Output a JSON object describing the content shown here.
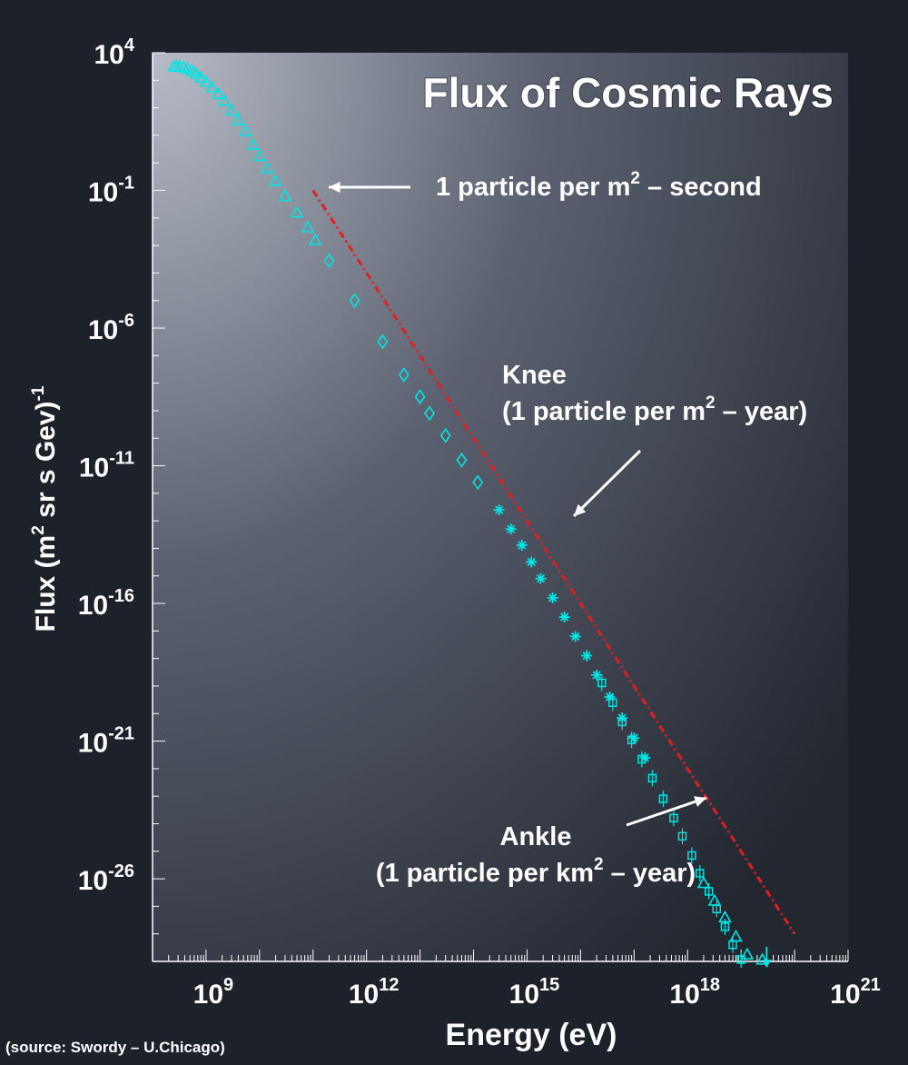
{
  "source_note": "(source: Swordy – U.Chicago)",
  "colors": {
    "background": "#1d2129",
    "data": "#00e5e5",
    "fit": "#e0201e",
    "text": "#ffffff"
  },
  "chart_data": {
    "type": "scatter",
    "title": "Flux of Cosmic Rays",
    "xlabel": "Energy (eV)",
    "ylabel": {
      "text": "Flux (m",
      "sup1": "2",
      "mid": " sr s Gev)",
      "sup2": "-1"
    },
    "x_scale": "log",
    "y_scale": "log",
    "xlim": [
      100000000.0,
      1e+21
    ],
    "ylim": [
      1e-29,
      10000.0
    ],
    "x_ticks": [
      {
        "base": "10",
        "exp": "9",
        "value": 1000000000.0
      },
      {
        "base": "10",
        "exp": "12",
        "value": 1000000000000.0
      },
      {
        "base": "10",
        "exp": "15",
        "value": 1000000000000000.0
      },
      {
        "base": "10",
        "exp": "18",
        "value": 1e+18
      },
      {
        "base": "10",
        "exp": "21",
        "value": 1e+21
      }
    ],
    "y_ticks": [
      {
        "base": "10",
        "exp": "4",
        "value": 10000.0
      },
      {
        "base": "10",
        "exp": "-1",
        "value": 0.1
      },
      {
        "base": "10",
        "exp": "-6",
        "value": 1e-06
      },
      {
        "base": "10",
        "exp": "-11",
        "value": 1e-11
      },
      {
        "base": "10",
        "exp": "-16",
        "value": 1e-16
      },
      {
        "base": "10",
        "exp": "-21",
        "value": 1e-21
      },
      {
        "base": "10",
        "exp": "-26",
        "value": 1e-26
      }
    ],
    "fit_line": {
      "style": "dash-dot",
      "points": [
        [
          100000000000.0,
          0.1
        ],
        [
          1e+20,
          1e-28
        ]
      ]
    },
    "series": [
      {
        "marker": "triangle",
        "points": [
          [
            250000000.0,
            3162
          ],
          [
            280000000.0,
            3162
          ],
          [
            320000000.0,
            3162
          ],
          [
            380000000.0,
            3000
          ],
          [
            450000000.0,
            2700
          ],
          [
            550000000.0,
            2200
          ],
          [
            650000000.0,
            1780
          ],
          [
            800000000.0,
            1260
          ],
          [
            1000000000.0,
            890
          ],
          [
            1300000000.0,
            560
          ],
          [
            1700000000.0,
            320
          ],
          [
            2200000000.0,
            180
          ],
          [
            3000000000.0,
            79
          ],
          [
            4000000000.0,
            35
          ],
          [
            5500000000.0,
            14
          ],
          [
            7500000000.0,
            4.5
          ],
          [
            10000000000.0,
            1.78
          ],
          [
            14000000000.0,
            0.63
          ],
          [
            20000000000.0,
            0.22
          ],
          [
            30000000000.0,
            0.063
          ],
          [
            50000000000.0,
            0.0158
          ],
          [
            80000000000.0,
            0.0045
          ],
          [
            110000000000.0,
            0.00158
          ]
        ]
      },
      {
        "marker": "diamond",
        "points": [
          [
            200000000000.0,
            0.00028
          ],
          [
            600000000000.0,
            1e-05
          ],
          [
            2000000000000.0,
            3.2e-07
          ],
          [
            5000000000000.0,
            2e-08
          ],
          [
            10000000000000.0,
            3.2e-09
          ],
          [
            15000000000000.0,
            8e-10
          ],
          [
            30000000000000.0,
            1.26e-10
          ],
          [
            60000000000000.0,
            1.6e-11
          ],
          [
            120000000000000.0,
            2.5e-12
          ]
        ]
      },
      {
        "marker": "star",
        "points": [
          [
            300000000000000.0,
            2.5e-13
          ],
          [
            500000000000000.0,
            5e-14
          ],
          [
            800000000000000.0,
            1.3e-14
          ],
          [
            1200000000000000.0,
            3.2e-15
          ],
          [
            1800000000000000.0,
            8e-16
          ],
          [
            3000000000000000.0,
            1.6e-16
          ],
          [
            5000000000000000.0,
            3.2e-17
          ],
          [
            8000000000000000.0,
            6.3e-18
          ],
          [
            1.3e+16,
            1.26e-18
          ],
          [
            2e+16,
            2.5e-19
          ],
          [
            3.5e+16,
            4e-20
          ],
          [
            6e+16,
            7e-21
          ],
          [
            1e+17,
            1.3e-21
          ],
          [
            1.6e+17,
            2.5e-22
          ]
        ]
      },
      {
        "marker": "square",
        "points": [
          [
            2.5e+16,
            1.3e-19
          ],
          [
            4e+16,
            2.5e-20
          ],
          [
            6e+16,
            5e-21
          ],
          [
            9e+16,
            1.1e-21
          ],
          [
            1.4e+17,
            2.2e-22
          ],
          [
            2.2e+17,
            4.5e-23
          ],
          [
            3.5e+17,
            8e-24
          ],
          [
            5.5e+17,
            1.6e-24
          ],
          [
            8e+17,
            3.5e-25
          ],
          [
            1.2e+18,
            7e-26
          ],
          [
            1.7e+18,
            1.6e-26
          ],
          [
            2.5e+18,
            3.5e-27
          ],
          [
            3.5e+18,
            8e-28
          ],
          [
            5e+18,
            1.8e-28
          ],
          [
            7e+18,
            4e-29
          ],
          [
            1e+19,
            9e-30
          ]
        ]
      },
      {
        "marker": "triangle",
        "points": [
          [
            2e+18,
            7e-27
          ],
          [
            3.2e+18,
            1.6e-27
          ],
          [
            5e+18,
            4e-28
          ],
          [
            8e+18,
            8e-29
          ],
          [
            1.3e+19,
            1.8e-29
          ],
          [
            2.5e+19,
            3e-30
          ]
        ]
      },
      {
        "marker": "arrow-down",
        "points": [
          [
            3e+19,
            1.5e-30
          ]
        ]
      }
    ],
    "annotations": [
      {
        "lines": [
          "1 particle per m",
          "2",
          " – second"
        ],
        "arrow_to": [
          130000000000.0,
          0.1
        ]
      },
      {
        "lines": [
          "Knee",
          "(1 particle per m",
          "2",
          " – year)"
        ],
        "arrow_to": [
          2000000000000000.0,
          2e-14
        ]
      },
      {
        "lines": [
          "Ankle",
          "(1 particle per km",
          "2",
          " – year)"
        ],
        "arrow_to": [
          3e+18,
          2e-24
        ]
      }
    ]
  }
}
